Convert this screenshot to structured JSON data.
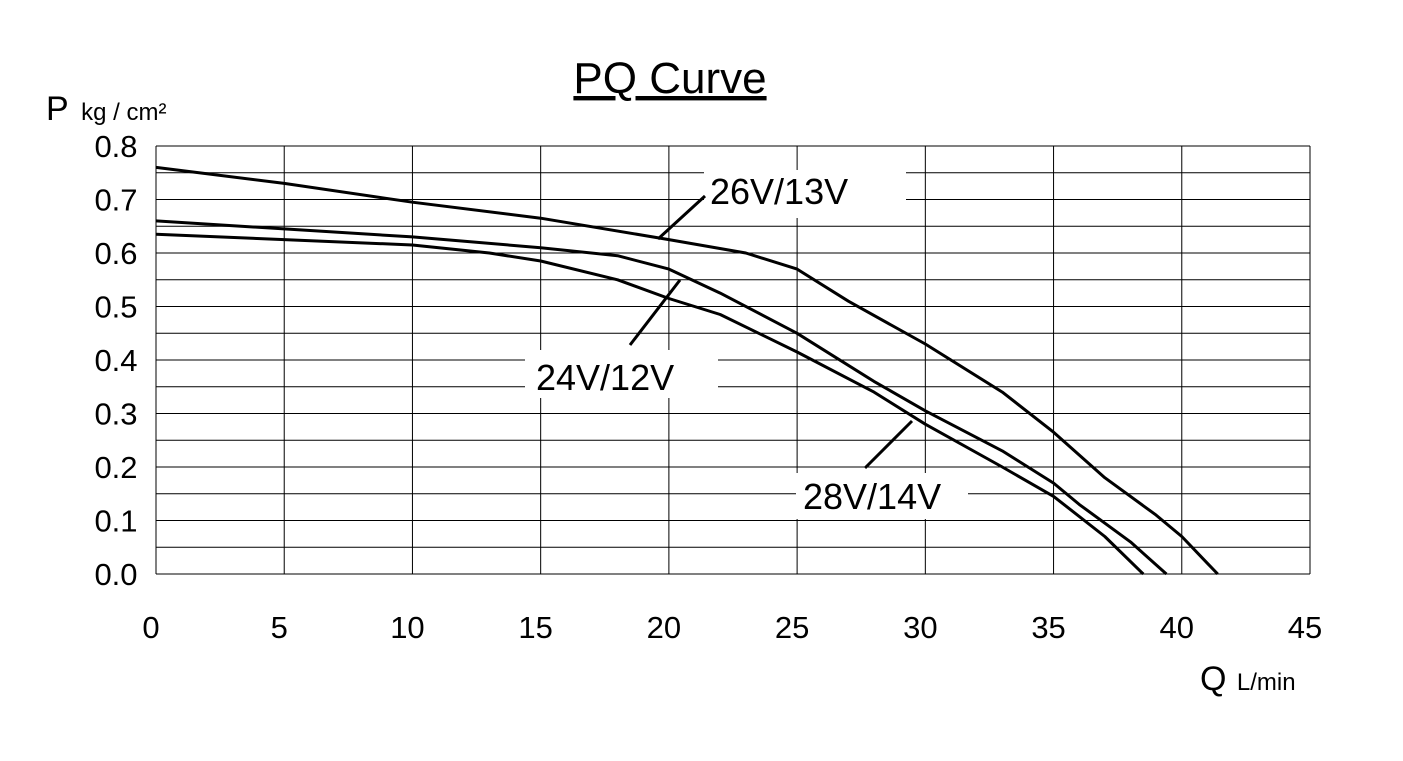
{
  "chart_data": {
    "type": "line",
    "title": "PQ Curve",
    "ylabel": {
      "symbol": "P",
      "unit": "kg / cm²"
    },
    "xlabel": {
      "symbol": "Q",
      "unit": "L/min"
    },
    "xlim": [
      0,
      45
    ],
    "ylim": [
      0,
      0.8
    ],
    "x_ticks": [
      "0",
      "5",
      "10",
      "15",
      "20",
      "25",
      "30",
      "35",
      "40",
      "45"
    ],
    "y_ticks": [
      "0.0",
      "0.1",
      "0.2",
      "0.3",
      "0.4",
      "0.5",
      "0.6",
      "0.7",
      "0.8"
    ],
    "grid": true,
    "series": [
      {
        "name": "26V/13V",
        "points": [
          [
            0,
            0.76
          ],
          [
            5,
            0.73
          ],
          [
            10,
            0.695
          ],
          [
            15,
            0.665
          ],
          [
            20,
            0.625
          ],
          [
            23,
            0.6
          ],
          [
            25,
            0.57
          ],
          [
            27,
            0.51
          ],
          [
            30,
            0.43
          ],
          [
            33,
            0.34
          ],
          [
            35,
            0.265
          ],
          [
            37,
            0.18
          ],
          [
            39,
            0.11
          ],
          [
            40,
            0.07
          ],
          [
            41,
            0.02
          ],
          [
            41.4,
            0.0
          ]
        ]
      },
      {
        "name": "24V/12V",
        "points": [
          [
            0,
            0.66
          ],
          [
            5,
            0.645
          ],
          [
            10,
            0.63
          ],
          [
            15,
            0.61
          ],
          [
            18,
            0.595
          ],
          [
            20,
            0.57
          ],
          [
            22,
            0.525
          ],
          [
            25,
            0.45
          ],
          [
            28,
            0.36
          ],
          [
            30,
            0.305
          ],
          [
            33,
            0.23
          ],
          [
            35,
            0.17
          ],
          [
            36,
            0.13
          ],
          [
            38,
            0.06
          ],
          [
            39.4,
            0.0
          ]
        ]
      },
      {
        "name": "28V/14V",
        "points": [
          [
            0,
            0.635
          ],
          [
            5,
            0.625
          ],
          [
            10,
            0.615
          ],
          [
            13,
            0.6
          ],
          [
            15,
            0.585
          ],
          [
            18,
            0.55
          ],
          [
            20,
            0.515
          ],
          [
            22,
            0.485
          ],
          [
            25,
            0.415
          ],
          [
            28,
            0.34
          ],
          [
            30,
            0.28
          ],
          [
            33,
            0.2
          ],
          [
            35,
            0.145
          ],
          [
            37,
            0.07
          ],
          [
            38.5,
            0.0
          ]
        ]
      }
    ],
    "annotations": [
      {
        "text": "26V/13V",
        "points_to": [
          19.8,
          0.625
        ]
      },
      {
        "text": "24V/12V",
        "points_to": [
          20.8,
          0.555
        ]
      },
      {
        "text": "28V/14V",
        "points_to": [
          29.5,
          0.29
        ]
      }
    ]
  }
}
